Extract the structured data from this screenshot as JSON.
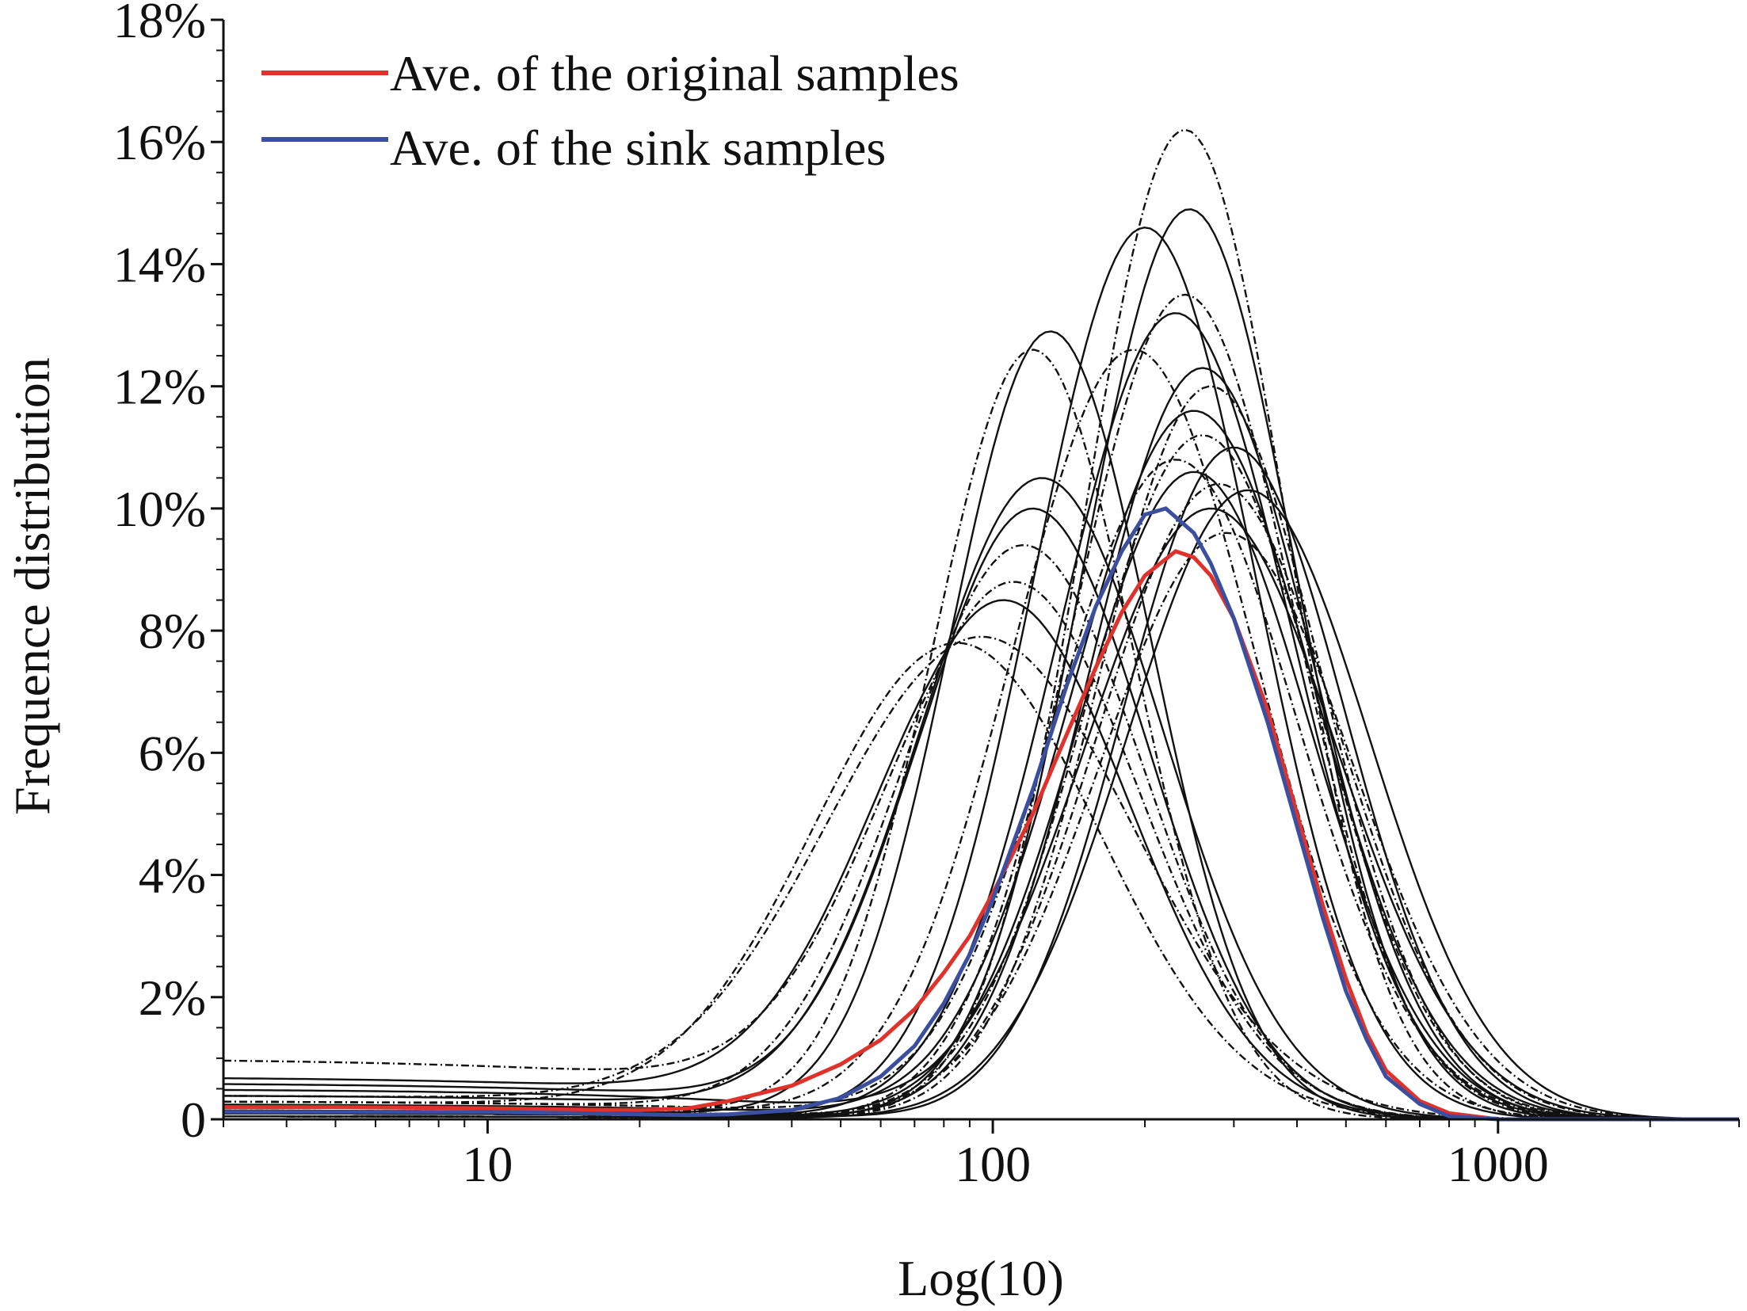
{
  "chart_data": {
    "type": "line",
    "title": "",
    "xlabel": "Log(10)",
    "ylabel": "Frequence distribution",
    "x_scale": "log",
    "xlim": [
      3,
      3000
    ],
    "ylim": [
      0,
      18
    ],
    "x_ticks": [
      {
        "value": 10,
        "label": "10"
      },
      {
        "value": 100,
        "label": "100"
      },
      {
        "value": 1000,
        "label": "1000"
      }
    ],
    "y_ticks": [
      {
        "value": 0,
        "label": "0"
      },
      {
        "value": 2,
        "label": "2%"
      },
      {
        "value": 4,
        "label": "4%"
      },
      {
        "value": 6,
        "label": "6%"
      },
      {
        "value": 8,
        "label": "8%"
      },
      {
        "value": 10,
        "label": "10%"
      },
      {
        "value": 12,
        "label": "12%"
      },
      {
        "value": 14,
        "label": "14%"
      },
      {
        "value": 16,
        "label": "16%"
      },
      {
        "value": 18,
        "label": "18%"
      }
    ],
    "grid": false,
    "legend_position": "top-left",
    "series": [
      {
        "name": "Ave. of the original samples",
        "color": "#e0312b",
        "x": [
          3,
          5,
          10,
          15,
          20,
          25,
          30,
          40,
          50,
          60,
          70,
          80,
          90,
          100,
          120,
          140,
          160,
          180,
          200,
          230,
          250,
          270,
          300,
          350,
          400,
          450,
          500,
          550,
          600,
          700,
          800,
          1000,
          3000
        ],
        "y": [
          0.2,
          0.2,
          0.18,
          0.16,
          0.15,
          0.18,
          0.3,
          0.55,
          0.9,
          1.3,
          1.8,
          2.4,
          3.0,
          3.7,
          5.0,
          6.3,
          7.4,
          8.3,
          8.9,
          9.3,
          9.2,
          8.9,
          8.2,
          6.7,
          5.0,
          3.5,
          2.3,
          1.4,
          0.8,
          0.3,
          0.1,
          0,
          0
        ]
      },
      {
        "name": "Ave. of the sink samples",
        "color": "#3b4fa0",
        "x": [
          3,
          5,
          10,
          15,
          20,
          25,
          30,
          40,
          50,
          60,
          70,
          80,
          90,
          100,
          120,
          140,
          160,
          180,
          200,
          220,
          250,
          270,
          300,
          350,
          400,
          450,
          500,
          550,
          600,
          700,
          800,
          1000,
          3000
        ],
        "y": [
          0.12,
          0.12,
          0.12,
          0.1,
          0.08,
          0.07,
          0.08,
          0.15,
          0.35,
          0.7,
          1.2,
          1.9,
          2.7,
          3.6,
          5.4,
          7.1,
          8.4,
          9.3,
          9.9,
          10.0,
          9.6,
          9.1,
          8.2,
          6.5,
          4.8,
          3.3,
          2.1,
          1.3,
          0.7,
          0.25,
          0.05,
          0,
          0
        ]
      }
    ],
    "sample_series": [
      {
        "peak_x": 240,
        "peak_y": 16.2,
        "width": 0.2,
        "tail": 0.05,
        "style": "dashdot"
      },
      {
        "peak_x": 245,
        "peak_y": 14.9,
        "width": 0.21,
        "tail": 0.05,
        "style": "solid"
      },
      {
        "peak_x": 200,
        "peak_y": 14.6,
        "width": 0.22,
        "tail": 0.1,
        "style": "solid"
      },
      {
        "peak_x": 240,
        "peak_y": 13.5,
        "width": 0.22,
        "tail": 0.05,
        "style": "dashdot"
      },
      {
        "peak_x": 230,
        "peak_y": 13.2,
        "width": 0.23,
        "tail": 0.1,
        "style": "solid"
      },
      {
        "peak_x": 130,
        "peak_y": 12.9,
        "width": 0.2,
        "tail": 0.15,
        "style": "solid"
      },
      {
        "peak_x": 120,
        "peak_y": 12.6,
        "width": 0.2,
        "tail": 0.2,
        "style": "dashdot"
      },
      {
        "peak_x": 190,
        "peak_y": 12.6,
        "width": 0.24,
        "tail": 0.2,
        "style": "dashdot"
      },
      {
        "peak_x": 260,
        "peak_y": 12.3,
        "width": 0.22,
        "tail": 0.1,
        "style": "solid"
      },
      {
        "peak_x": 270,
        "peak_y": 12.0,
        "width": 0.22,
        "tail": 0.05,
        "style": "dashdot"
      },
      {
        "peak_x": 250,
        "peak_y": 11.6,
        "width": 0.24,
        "tail": 0.25,
        "style": "solid"
      },
      {
        "peak_x": 260,
        "peak_y": 11.2,
        "width": 0.23,
        "tail": 0.1,
        "style": "dashdot"
      },
      {
        "peak_x": 300,
        "peak_y": 11.0,
        "width": 0.22,
        "tail": 0.1,
        "style": "solid"
      },
      {
        "peak_x": 230,
        "peak_y": 10.8,
        "width": 0.24,
        "tail": 0.3,
        "style": "dashdot"
      },
      {
        "peak_x": 250,
        "peak_y": 10.6,
        "width": 0.23,
        "tail": 0.1,
        "style": "solid"
      },
      {
        "peak_x": 125,
        "peak_y": 10.5,
        "width": 0.24,
        "tail": 0.4,
        "style": "solid"
      },
      {
        "peak_x": 280,
        "peak_y": 10.4,
        "width": 0.24,
        "tail": 0.15,
        "style": "dashdot"
      },
      {
        "peak_x": 320,
        "peak_y": 10.3,
        "width": 0.24,
        "tail": 0.05,
        "style": "solid"
      },
      {
        "peak_x": 270,
        "peak_y": 10.0,
        "width": 0.25,
        "tail": 0.5,
        "style": "solid"
      },
      {
        "peak_x": 120,
        "peak_y": 10.0,
        "width": 0.23,
        "tail": 0.6,
        "style": "solid"
      },
      {
        "peak_x": 115,
        "peak_y": 9.4,
        "width": 0.24,
        "tail": 0.3,
        "style": "dashdot"
      },
      {
        "peak_x": 290,
        "peak_y": 9.6,
        "width": 0.25,
        "tail": 0.1,
        "style": "dashdot"
      },
      {
        "peak_x": 110,
        "peak_y": 8.8,
        "width": 0.25,
        "tail": 1.0,
        "style": "dashdot"
      },
      {
        "peak_x": 105,
        "peak_y": 8.5,
        "width": 0.25,
        "tail": 0.7,
        "style": "solid"
      },
      {
        "peak_x": 95,
        "peak_y": 7.9,
        "width": 0.3,
        "tail": 0.4,
        "style": "dashdot"
      },
      {
        "peak_x": 85,
        "peak_y": 7.8,
        "width": 0.28,
        "tail": 0.3,
        "style": "dashdot"
      }
    ]
  }
}
